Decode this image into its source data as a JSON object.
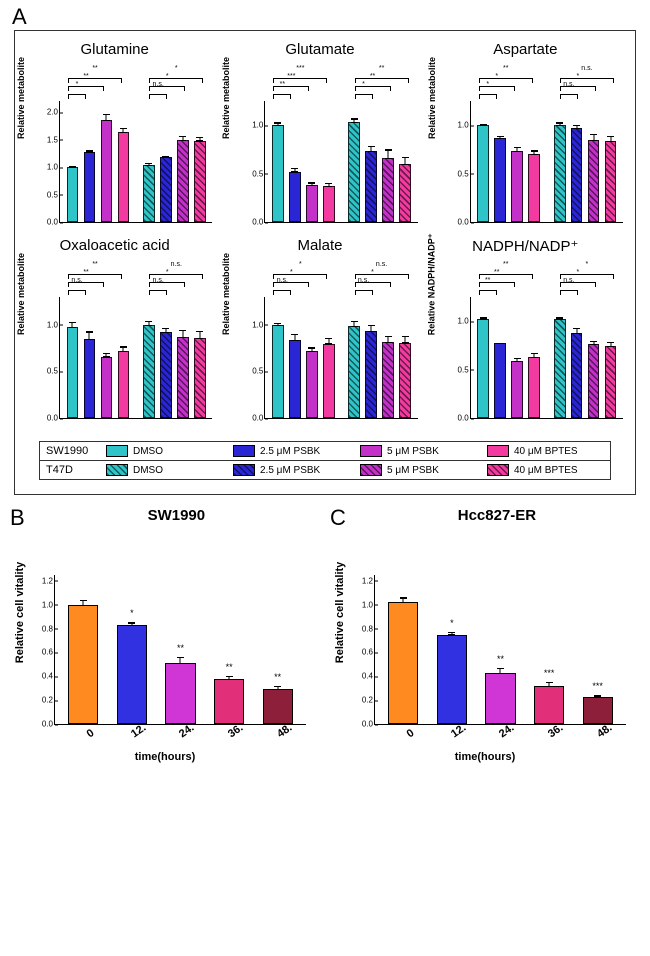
{
  "colors": {
    "c1": "#2fc5c8",
    "c2": "#2a26d6",
    "c3": "#c431c9",
    "c4": "#f23aa1",
    "orange": "#ff8a1f",
    "blue2": "#3131e2",
    "magenta2": "#d036d6",
    "pink2": "#e12f7a",
    "darkred": "#8e1f3a"
  },
  "panelA": {
    "label": "A",
    "charts": [
      {
        "title": "Glutamine",
        "ylabel": "Relative metabolite",
        "ymax": 2.2,
        "yticks": [
          0.0,
          0.5,
          1.0,
          1.5,
          2.0
        ],
        "values": [
          1.0,
          1.28,
          1.86,
          1.64,
          1.04,
          1.18,
          1.49,
          1.48
        ],
        "errs": [
          0.03,
          0.04,
          0.12,
          0.09,
          0.05,
          0.04,
          0.1,
          0.08
        ],
        "sig": [
          {
            "g": 0,
            "a": 0,
            "b": 1,
            "y": 6,
            "t": "*"
          },
          {
            "g": 0,
            "a": 0,
            "b": 2,
            "y": 14,
            "t": "**"
          },
          {
            "g": 0,
            "a": 0,
            "b": 3,
            "y": 22,
            "t": "**"
          },
          {
            "g": 1,
            "a": 0,
            "b": 1,
            "y": 6,
            "t": "n.s."
          },
          {
            "g": 1,
            "a": 0,
            "b": 2,
            "y": 14,
            "t": "*"
          },
          {
            "g": 1,
            "a": 0,
            "b": 3,
            "y": 22,
            "t": "*"
          }
        ]
      },
      {
        "title": "Glutamate",
        "ylabel": "Relative metabolite",
        "ymax": 1.25,
        "yticks": [
          0.0,
          0.5,
          1.0
        ],
        "values": [
          1.0,
          0.52,
          0.38,
          0.37,
          1.03,
          0.73,
          0.66,
          0.6
        ],
        "errs": [
          0.04,
          0.05,
          0.04,
          0.04,
          0.05,
          0.07,
          0.1,
          0.08
        ],
        "sig": [
          {
            "g": 0,
            "a": 0,
            "b": 1,
            "y": 6,
            "t": "**"
          },
          {
            "g": 0,
            "a": 0,
            "b": 2,
            "y": 14,
            "t": "***"
          },
          {
            "g": 0,
            "a": 0,
            "b": 3,
            "y": 22,
            "t": "***"
          },
          {
            "g": 1,
            "a": 0,
            "b": 1,
            "y": 6,
            "t": "*"
          },
          {
            "g": 1,
            "a": 0,
            "b": 2,
            "y": 14,
            "t": "**"
          },
          {
            "g": 1,
            "a": 0,
            "b": 3,
            "y": 22,
            "t": "**"
          }
        ]
      },
      {
        "title": "Aspartate",
        "ylabel": "Relative metabolite",
        "ymax": 1.25,
        "yticks": [
          0.0,
          0.5,
          1.0
        ],
        "values": [
          1.0,
          0.87,
          0.73,
          0.7,
          1.0,
          0.97,
          0.85,
          0.84
        ],
        "errs": [
          0.02,
          0.03,
          0.06,
          0.05,
          0.04,
          0.04,
          0.07,
          0.06
        ],
        "sig": [
          {
            "g": 0,
            "a": 0,
            "b": 1,
            "y": 6,
            "t": "*"
          },
          {
            "g": 0,
            "a": 0,
            "b": 2,
            "y": 14,
            "t": "*"
          },
          {
            "g": 0,
            "a": 0,
            "b": 3,
            "y": 22,
            "t": "**"
          },
          {
            "g": 1,
            "a": 0,
            "b": 1,
            "y": 6,
            "t": "n.s."
          },
          {
            "g": 1,
            "a": 0,
            "b": 2,
            "y": 14,
            "t": "*"
          },
          {
            "g": 1,
            "a": 0,
            "b": 3,
            "y": 22,
            "t": "n.s."
          }
        ]
      },
      {
        "title": "Oxaloacetic acid",
        "ylabel": "Relative metabolite",
        "ymax": 1.3,
        "yticks": [
          0.0,
          0.5,
          1.0
        ],
        "values": [
          0.98,
          0.85,
          0.66,
          0.72,
          1.0,
          0.92,
          0.87,
          0.86
        ],
        "errs": [
          0.06,
          0.09,
          0.05,
          0.06,
          0.05,
          0.06,
          0.09,
          0.09
        ],
        "sig": [
          {
            "g": 0,
            "a": 0,
            "b": 1,
            "y": 6,
            "t": "n.s."
          },
          {
            "g": 0,
            "a": 0,
            "b": 2,
            "y": 14,
            "t": "**"
          },
          {
            "g": 0,
            "a": 0,
            "b": 3,
            "y": 22,
            "t": "**"
          },
          {
            "g": 1,
            "a": 0,
            "b": 1,
            "y": 6,
            "t": "n.s."
          },
          {
            "g": 1,
            "a": 0,
            "b": 2,
            "y": 14,
            "t": "*"
          },
          {
            "g": 1,
            "a": 0,
            "b": 3,
            "y": 22,
            "t": "n.s."
          }
        ]
      },
      {
        "title": "Malate",
        "ylabel": "Relative metabolite",
        "ymax": 1.3,
        "yticks": [
          0.0,
          0.5,
          1.0
        ],
        "values": [
          1.0,
          0.84,
          0.72,
          0.8,
          0.99,
          0.93,
          0.82,
          0.81
        ],
        "errs": [
          0.03,
          0.07,
          0.05,
          0.07,
          0.06,
          0.08,
          0.07,
          0.08
        ],
        "sig": [
          {
            "g": 0,
            "a": 0,
            "b": 1,
            "y": 6,
            "t": "n.s."
          },
          {
            "g": 0,
            "a": 0,
            "b": 2,
            "y": 14,
            "t": "*"
          },
          {
            "g": 0,
            "a": 0,
            "b": 3,
            "y": 22,
            "t": "*"
          },
          {
            "g": 1,
            "a": 0,
            "b": 1,
            "y": 6,
            "t": "n.s."
          },
          {
            "g": 1,
            "a": 0,
            "b": 2,
            "y": 14,
            "t": "*"
          },
          {
            "g": 1,
            "a": 0,
            "b": 3,
            "y": 22,
            "t": "n.s."
          }
        ]
      },
      {
        "title": "NADPH/NADP⁺",
        "ylabel": "Relative NADPH/NADP⁺",
        "ymax": 1.25,
        "yticks": [
          0.0,
          0.5,
          1.0
        ],
        "values": [
          1.02,
          0.77,
          0.59,
          0.63,
          1.02,
          0.88,
          0.76,
          0.74
        ],
        "errs": [
          0.03,
          0.02,
          0.04,
          0.05,
          0.03,
          0.06,
          0.05,
          0.06
        ],
        "sig": [
          {
            "g": 0,
            "a": 0,
            "b": 1,
            "y": 6,
            "t": "**"
          },
          {
            "g": 0,
            "a": 0,
            "b": 2,
            "y": 14,
            "t": "**"
          },
          {
            "g": 0,
            "a": 0,
            "b": 3,
            "y": 22,
            "t": "**"
          },
          {
            "g": 1,
            "a": 0,
            "b": 1,
            "y": 6,
            "t": "n.s."
          },
          {
            "g": 1,
            "a": 0,
            "b": 2,
            "y": 14,
            "t": "*"
          },
          {
            "g": 1,
            "a": 0,
            "b": 3,
            "y": 22,
            "t": "*"
          }
        ]
      }
    ],
    "legend_rows": [
      {
        "cell": "SW1990",
        "hatch": false,
        "items": [
          {
            "c": "c1",
            "t": "DMSO"
          },
          {
            "c": "c2",
            "t": "2.5 μM PSBK"
          },
          {
            "c": "c3",
            "t": "5 μM PSBK"
          },
          {
            "c": "c4",
            "t": "40 μM BPTES"
          }
        ]
      },
      {
        "cell": "T47D",
        "hatch": true,
        "items": [
          {
            "c": "c1",
            "t": "DMSO"
          },
          {
            "c": "c2",
            "t": "2.5 μM PSBK"
          },
          {
            "c": "c3",
            "t": "5 μM PSBK"
          },
          {
            "c": "c4",
            "t": "40 μM BPTES"
          }
        ]
      }
    ]
  },
  "panelB": {
    "label": "B",
    "title": "SW1990",
    "ylabel": "Relative cell vitality",
    "xlabel": "time(hours)",
    "ymax": 1.25,
    "yticks": [
      0.0,
      0.2,
      0.4,
      0.6,
      0.8,
      1.0,
      1.2
    ],
    "categories": [
      "0",
      "12.",
      "24.",
      "36.",
      "48."
    ],
    "colors": [
      "orange",
      "blue2",
      "magenta2",
      "pink2",
      "darkred"
    ],
    "values": [
      1.0,
      0.83,
      0.51,
      0.38,
      0.29
    ],
    "errs": [
      0.05,
      0.03,
      0.06,
      0.03,
      0.04
    ],
    "sigs": [
      "",
      "*",
      "**",
      "**",
      "**"
    ]
  },
  "panelC": {
    "label": "C",
    "title": "Hcc827-ER",
    "ylabel": "Relative cell vitality",
    "xlabel": "time(hours)",
    "ymax": 1.25,
    "yticks": [
      0.0,
      0.2,
      0.4,
      0.6,
      0.8,
      1.0,
      1.2
    ],
    "categories": [
      "0",
      "12.",
      "24.",
      "36.",
      "48."
    ],
    "colors": [
      "orange",
      "blue2",
      "magenta2",
      "pink2",
      "darkred"
    ],
    "values": [
      1.02,
      0.75,
      0.43,
      0.32,
      0.23
    ],
    "errs": [
      0.05,
      0.03,
      0.05,
      0.04,
      0.02
    ],
    "sigs": [
      "",
      "*",
      "**",
      "***",
      "***"
    ]
  }
}
